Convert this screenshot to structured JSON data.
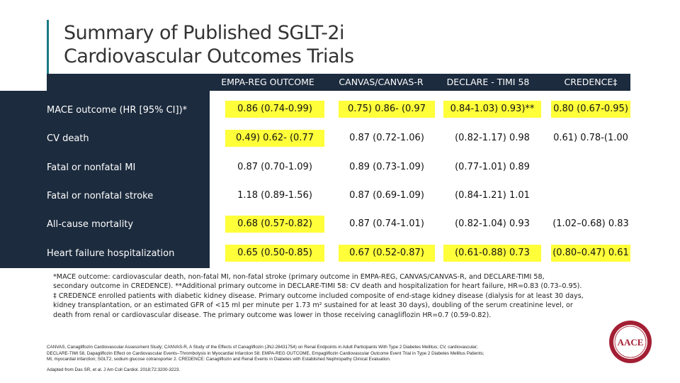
{
  "title": {
    "line1": "Summary of Published SGLT-2i",
    "line2": "Cardiovascular Outcomes Trials"
  },
  "columns": [
    "EMPA-REG OUTCOME",
    "CANVAS/CANVAS-R",
    "DECLARE - TIMI 58",
    "CREDENCE‡"
  ],
  "rows": [
    {
      "label": "MACE outcome (HR [95% CI])*",
      "cells": [
        {
          "text": "0.86 (0.74-0.99)",
          "highlight": true
        },
        {
          "text": "0.75) 0.86- (0.97",
          "highlight": true
        },
        {
          "text": "0.84-1.03) 0.93)**",
          "highlight": true
        },
        {
          "text": "0.80 (0.67-0.95)",
          "highlight": true
        }
      ]
    },
    {
      "label": "CV death",
      "cells": [
        {
          "text": "0.49) 0.62- (0.77",
          "highlight": true
        },
        {
          "text": "0.87 (0.72-1.06)",
          "highlight": false
        },
        {
          "text": "(0.82-1.17) 0.98",
          "highlight": false
        },
        {
          "text": "0.61) 0.78-(1.00",
          "highlight": false
        }
      ]
    },
    {
      "label": "Fatal or nonfatal MI",
      "cells": [
        {
          "text": "0.87 (0.70-1.09)",
          "highlight": false
        },
        {
          "text": "0.89 (0.73-1.09)",
          "highlight": false
        },
        {
          "text": "(0.77-1.01) 0.89",
          "highlight": false
        },
        {
          "text": "",
          "highlight": false
        }
      ]
    },
    {
      "label": "Fatal or nonfatal stroke",
      "cells": [
        {
          "text": "1.18 (0.89-1.56)",
          "highlight": false
        },
        {
          "text": "0.87 (0.69-1.09)",
          "highlight": false
        },
        {
          "text": "(0.84-1.21) 1.01",
          "highlight": false
        },
        {
          "text": "",
          "highlight": false
        }
      ]
    },
    {
      "label": "All-cause mortality",
      "cells": [
        {
          "text": "0.68 (0.57-0.82)",
          "highlight": true
        },
        {
          "text": "0.87 (0.74-1.01)",
          "highlight": false
        },
        {
          "text": "(0.82-1.04) 0.93",
          "highlight": false
        },
        {
          "text": "(1.02–0.68) 0.83",
          "highlight": false
        }
      ]
    },
    {
      "label": "Heart failure hospitalization",
      "cells": [
        {
          "text": "0.65 (0.50-0.85)",
          "highlight": true
        },
        {
          "text": "0.67 (0.52-0.87)",
          "highlight": true
        },
        {
          "text": "(0.61-0.88) 0.73",
          "highlight": true
        },
        {
          "text": "(0.80–0.47) 0.61",
          "highlight": true
        }
      ]
    }
  ],
  "footnote": {
    "line1": "*MACE outcome: cardiovascular death, non-fatal MI, non-fatal stroke (primary outcome in EMPA-REG, CANVAS/CANVAS-R, and DECLARE-TIMI 58,",
    "line2": "secondary outcome in CREDENCE).  **Additional primary outcome in DECLARE-TIMI 58: CV death and hospitalization for heart failure, HR=0.83 (0.73–0.95).",
    "line3": "‡ CREDENCE enrolled patients with diabetic kidney disease. Primary outcome included composite of end-stage kidney disease (dialysis for at least 30 days,",
    "line4": "kidney transplantation, or an estimated GFR of <15 ml per minute per 1.73 m² sustained for at least 30 days), doubling of the serum creatinine level, or",
    "line5": "death from renal or cardiovascular disease. The primary outcome was lower in those receiving canagliflozin HR=0.7 (0.59-0.82)."
  },
  "abbreviations": {
    "line1": "CANVAS, Canagliflozin Cardiovascular Assessment Study; CANVAS-R, A Study of the Effects of Canagliflozin (JNJ-28431754) on Renal Endpoints in Adult Participants With Type 2 Diabetes Mellitus; CV, cardiovascular;",
    "line2": "DECLARE-TIMI 58, Dapagliflozin Effect on Cardiovascular Events–Thrombolysis in Myocardial Infarction 58; EMPA-REG OUTCOME, Empagliflozin Cardiovascular Outcome Event Trial in Type 2 Diabetes Mellitus Patients;",
    "line3": "MI, myocardial infarction; SGLT2, sodium glucose cotransporter 2. CREDENCE: Canagliflozin and Renal Events in Diabetes with Established Nephropathy Clinical Evaluation."
  },
  "citation": "Adapted from Das SR, et al. J Am Coll Cardiol. 2018;72:3200-3223.",
  "logo": {
    "text": "AACE"
  },
  "colors": {
    "navy": "#1c2b3e",
    "accent": "#1b7a83",
    "highlight": "#ffff3a",
    "logo": "#a31f34"
  }
}
